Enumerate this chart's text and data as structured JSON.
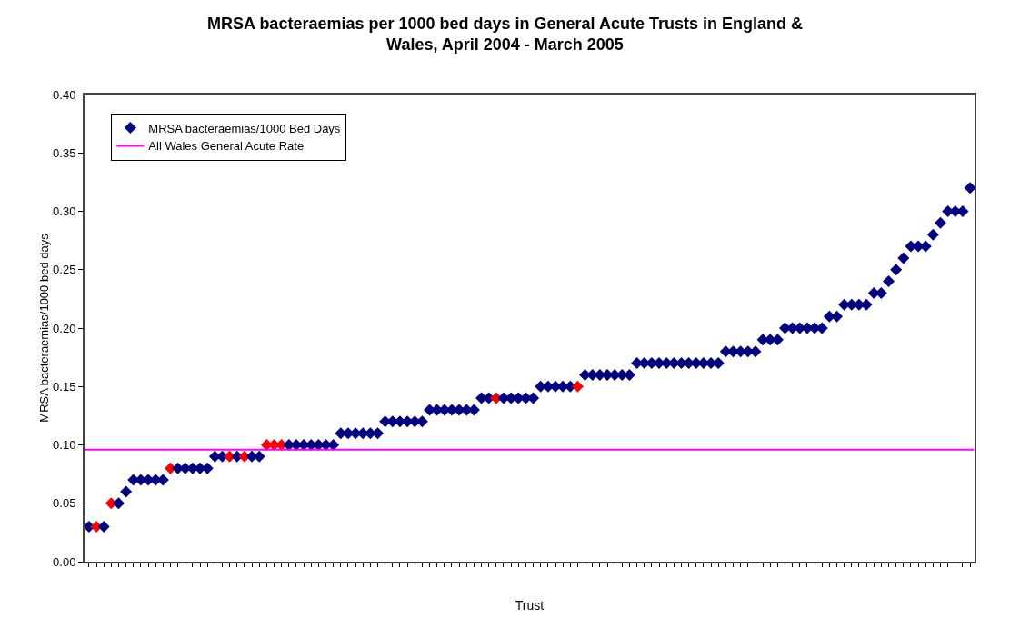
{
  "chart_data": {
    "type": "scatter",
    "title": "MRSA bacteraemias per 1000 bed days in General Acute Trusts in England &\nWales, April 2004 - March 2005",
    "xlabel": "Trust",
    "ylabel": "MRSA bacteraemias/1000 bed days",
    "categories": [
      null,
      null,
      null,
      null,
      null,
      null,
      null,
      null,
      null,
      null,
      null,
      null,
      null,
      null,
      null,
      null,
      null,
      null,
      null,
      null,
      null,
      null,
      null,
      null,
      null,
      null,
      null,
      null,
      null,
      null,
      null,
      null,
      null,
      null,
      null,
      null,
      null,
      null,
      null,
      null,
      null,
      null,
      null,
      null,
      null,
      null,
      null,
      null,
      null,
      null,
      null,
      null,
      null,
      null,
      null,
      null,
      null,
      null,
      null,
      null,
      null,
      null,
      null,
      null,
      null,
      null,
      null,
      null,
      null,
      null,
      null,
      null,
      null,
      null,
      null,
      null,
      null,
      null,
      null,
      null,
      null,
      null,
      null,
      null,
      null,
      null,
      null,
      null,
      null,
      null,
      null,
      null,
      null,
      null,
      null,
      null,
      null,
      null,
      null,
      null,
      null,
      null,
      null,
      null,
      null,
      null,
      null,
      null,
      null,
      null,
      null,
      null,
      null,
      null,
      null,
      null,
      null,
      null,
      null,
      null
    ],
    "series": [
      {
        "name": "MRSA bacteraemias/1000 Bed Days",
        "color": "#000080",
        "values": [
          0.03,
          0.03,
          0.03,
          0.05,
          0.05,
          0.06,
          0.07,
          0.07,
          0.07,
          0.07,
          0.07,
          0.08,
          0.08,
          0.08,
          0.08,
          0.08,
          0.08,
          0.09,
          0.09,
          0.09,
          0.09,
          0.09,
          0.09,
          0.09,
          0.1,
          0.1,
          0.1,
          0.1,
          0.1,
          0.1,
          0.1,
          0.1,
          0.1,
          0.1,
          0.11,
          0.11,
          0.11,
          0.11,
          0.11,
          0.11,
          0.12,
          0.12,
          0.12,
          0.12,
          0.12,
          0.12,
          0.13,
          0.13,
          0.13,
          0.13,
          0.13,
          0.13,
          0.13,
          0.14,
          0.14,
          0.14,
          0.14,
          0.14,
          0.14,
          0.14,
          0.14,
          0.15,
          0.15,
          0.15,
          0.15,
          0.15,
          0.15,
          0.16,
          0.16,
          0.16,
          0.16,
          0.16,
          0.16,
          0.16,
          0.17,
          0.17,
          0.17,
          0.17,
          0.17,
          0.17,
          0.17,
          0.17,
          0.17,
          0.17,
          0.17,
          0.17,
          0.18,
          0.18,
          0.18,
          0.18,
          0.18,
          0.19,
          0.19,
          0.19,
          0.2,
          0.2,
          0.2,
          0.2,
          0.2,
          0.2,
          0.21,
          0.21,
          0.22,
          0.22,
          0.22,
          0.22,
          0.23,
          0.23,
          0.24,
          0.25,
          0.26,
          0.27,
          0.27,
          0.27,
          0.28,
          0.29,
          0.3,
          0.3,
          0.3,
          0.32
        ],
        "colors": [
          "#000080",
          "#ff0000",
          "#000080",
          "#ff0000",
          "#000080",
          "#000080",
          "#000080",
          "#000080",
          "#000080",
          "#000080",
          "#000080",
          "#ff0000",
          "#000080",
          "#000080",
          "#000080",
          "#000080",
          "#000080",
          "#000080",
          "#000080",
          "#ff0000",
          "#000080",
          "#ff0000",
          "#000080",
          "#000080",
          "#ff0000",
          "#ff0000",
          "#ff0000",
          "#000080",
          "#000080",
          "#000080",
          "#000080",
          "#000080",
          "#000080",
          "#000080",
          "#000080",
          "#000080",
          "#000080",
          "#000080",
          "#000080",
          "#000080",
          "#000080",
          "#000080",
          "#000080",
          "#000080",
          "#000080",
          "#000080",
          "#000080",
          "#000080",
          "#000080",
          "#000080",
          "#000080",
          "#000080",
          "#000080",
          "#000080",
          "#000080",
          "#ff0000",
          "#000080",
          "#000080",
          "#000080",
          "#000080",
          "#000080",
          "#000080",
          "#000080",
          "#000080",
          "#000080",
          "#000080",
          "#ff0000",
          "#000080",
          "#000080",
          "#000080",
          "#000080",
          "#000080",
          "#000080",
          "#000080",
          "#000080",
          "#000080",
          "#000080",
          "#000080",
          "#000080",
          "#000080",
          "#000080",
          "#000080",
          "#000080",
          "#000080",
          "#000080",
          "#000080",
          "#000080",
          "#000080",
          "#000080",
          "#000080",
          "#000080",
          "#000080",
          "#000080",
          "#000080",
          "#000080",
          "#000080",
          "#000080",
          "#000080",
          "#000080",
          "#000080",
          "#000080",
          "#000080",
          "#000080",
          "#000080",
          "#000080",
          "#000080",
          "#000080",
          "#000080",
          "#000080",
          "#000080",
          "#000080",
          "#000080",
          "#000080",
          "#000080",
          "#000080",
          "#000080",
          "#000080",
          "#000080",
          "#000080",
          "#000080"
        ]
      }
    ],
    "ref_lines": [
      {
        "axis": "y",
        "value": 0.096,
        "label": "All Wales General Acute Rate",
        "color": "#ff00ff"
      }
    ],
    "ylim": [
      0,
      0.4
    ],
    "yticks": [
      {
        "value": 0,
        "label": "0.00"
      },
      {
        "value": 0.05,
        "label": "0.05"
      },
      {
        "value": 0.1,
        "label": "0.10"
      },
      {
        "value": 0.15,
        "label": "0.15"
      },
      {
        "value": 0.2,
        "label": "0.20"
      },
      {
        "value": 0.25,
        "label": "0.25"
      },
      {
        "value": 0.3,
        "label": "0.30"
      },
      {
        "value": 0.35,
        "label": "0.35"
      },
      {
        "value": 0.4,
        "label": "0.40"
      }
    ],
    "marker": "diamond",
    "legend": "top left"
  }
}
